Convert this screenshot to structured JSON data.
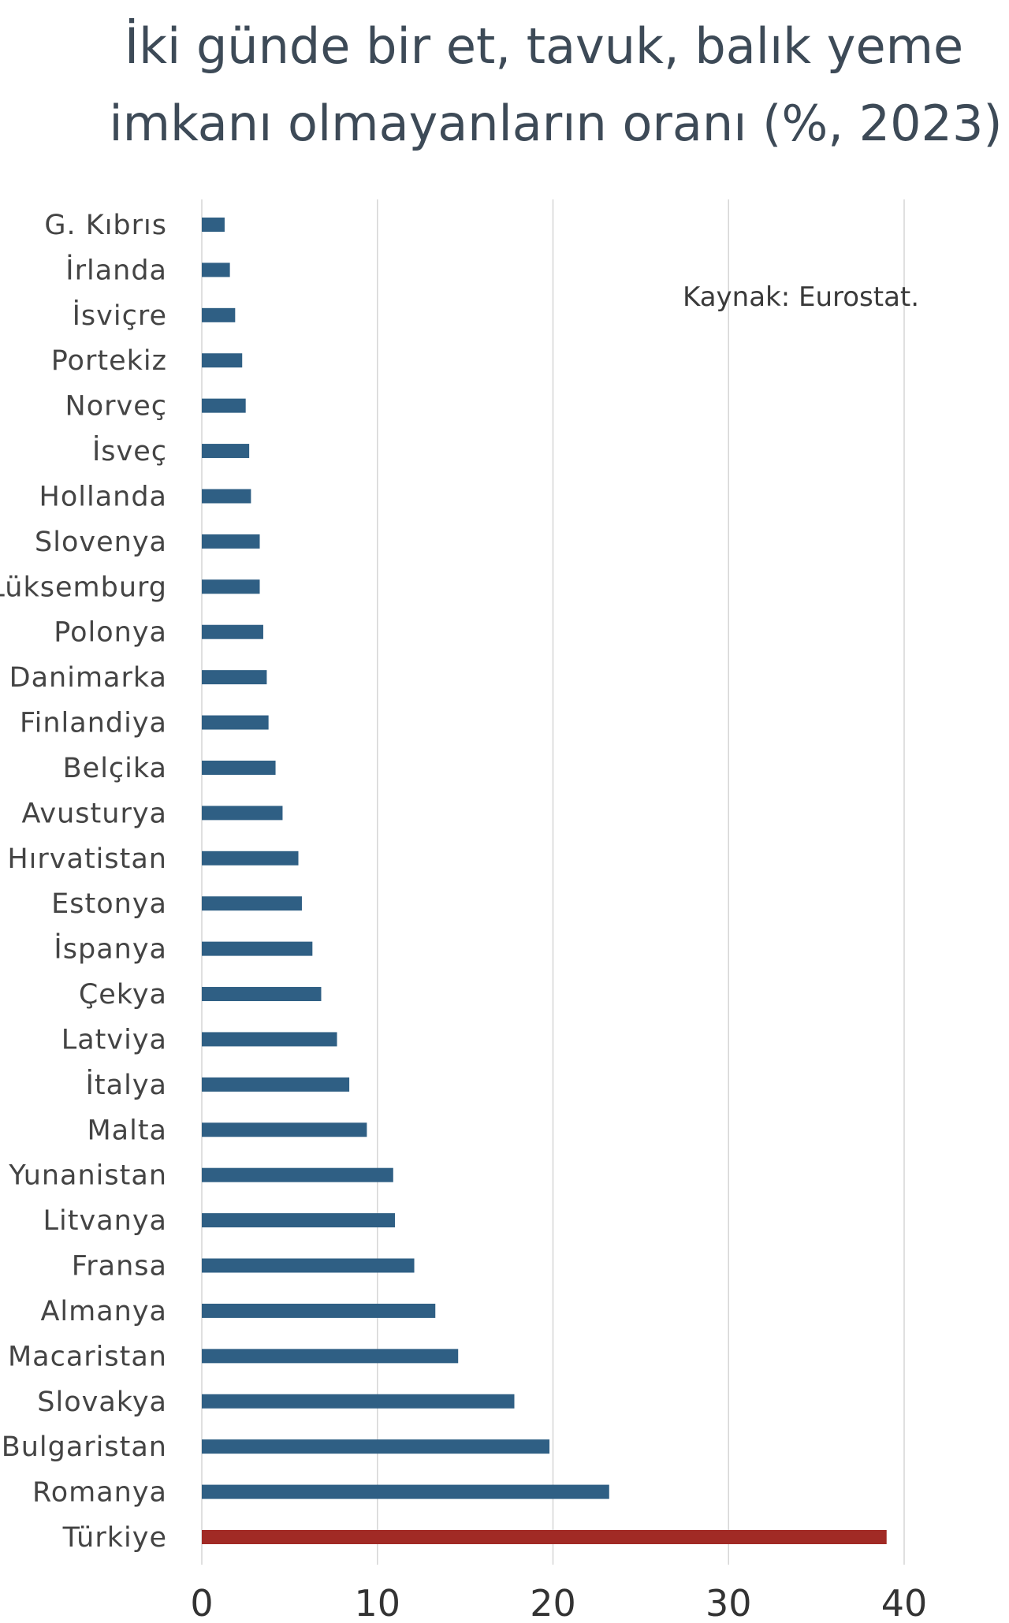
{
  "chart_data": {
    "type": "bar",
    "orientation": "horizontal",
    "title": [
      "İki günde bir et, tavuk, balık yeme",
      "imkanı olmayanların oranı (%, 2023)"
    ],
    "source": "Kaynak: Eurostat.",
    "xlim": [
      0,
      40
    ],
    "xticks": [
      0,
      10,
      20,
      30,
      40
    ],
    "grid": true,
    "colors": {
      "default": "#2f5f84",
      "highlight": "#a12a25"
    },
    "highlight": "Türkiye",
    "categories": [
      "G. Kıbrıs",
      "İrlanda",
      "İsviçre",
      "Portekiz",
      "Norveç",
      "İsveç",
      "Hollanda",
      "Slovenya",
      "Lüksemburg",
      "Polonya",
      "Danimarka",
      "Finlandiya",
      "Belçika",
      "Avusturya",
      "Hırvatistan",
      "Estonya",
      "İspanya",
      "Çekya",
      "Latviya",
      "İtalya",
      "Malta",
      "Yunanistan",
      "Litvanya",
      "Fransa",
      "Almanya",
      "Macaristan",
      "Slovakya",
      "Bulgaristan",
      "Romanya",
      "Türkiye"
    ],
    "values": [
      1.3,
      1.6,
      1.9,
      2.3,
      2.5,
      2.7,
      2.8,
      3.3,
      3.3,
      3.5,
      3.7,
      3.8,
      4.2,
      4.6,
      5.5,
      5.7,
      6.3,
      6.8,
      7.7,
      8.4,
      9.4,
      10.9,
      11.0,
      12.1,
      13.3,
      14.6,
      17.8,
      19.8,
      23.2,
      39.0
    ]
  }
}
